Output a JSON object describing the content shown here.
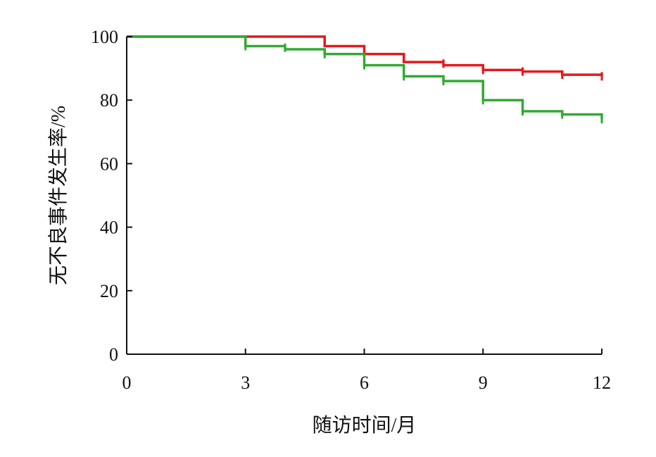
{
  "chart_data": {
    "type": "line",
    "step": true,
    "xlabel": "随访时间/月",
    "ylabel": "无不良事件发生率/%",
    "xlim": [
      0,
      12
    ],
    "ylim": [
      0,
      100
    ],
    "xticks": [
      0,
      3,
      6,
      9,
      12
    ],
    "yticks": [
      0,
      20,
      40,
      60,
      80,
      100
    ],
    "grid": false,
    "series": [
      {
        "color": "#e31a1c",
        "steps": [
          [
            0,
            100
          ],
          [
            5,
            97
          ],
          [
            6,
            94.5
          ],
          [
            7,
            92
          ],
          [
            8,
            91
          ],
          [
            9,
            89.5
          ],
          [
            10,
            89
          ],
          [
            11,
            88
          ],
          [
            12,
            87.5
          ]
        ],
        "censored": [
          [
            6,
            94.5
          ],
          [
            8,
            91.5
          ],
          [
            9,
            89.5
          ],
          [
            10,
            89
          ],
          [
            11,
            88
          ],
          [
            12,
            87.5
          ]
        ]
      },
      {
        "color": "#33aa33",
        "steps": [
          [
            0,
            100
          ],
          [
            3,
            97
          ],
          [
            4,
            96
          ],
          [
            5,
            94.5
          ],
          [
            6,
            91
          ],
          [
            7,
            87.5
          ],
          [
            8,
            86
          ],
          [
            9,
            80
          ],
          [
            10,
            76.5
          ],
          [
            11,
            75.5
          ],
          [
            12,
            74
          ]
        ],
        "censored": [
          [
            3,
            97
          ],
          [
            4,
            96.5
          ],
          [
            5,
            94.5
          ],
          [
            6,
            91
          ],
          [
            7,
            87.5
          ],
          [
            8,
            86
          ],
          [
            9,
            80
          ],
          [
            10,
            76.5
          ],
          [
            11,
            75.5
          ],
          [
            12,
            74
          ]
        ]
      }
    ]
  }
}
